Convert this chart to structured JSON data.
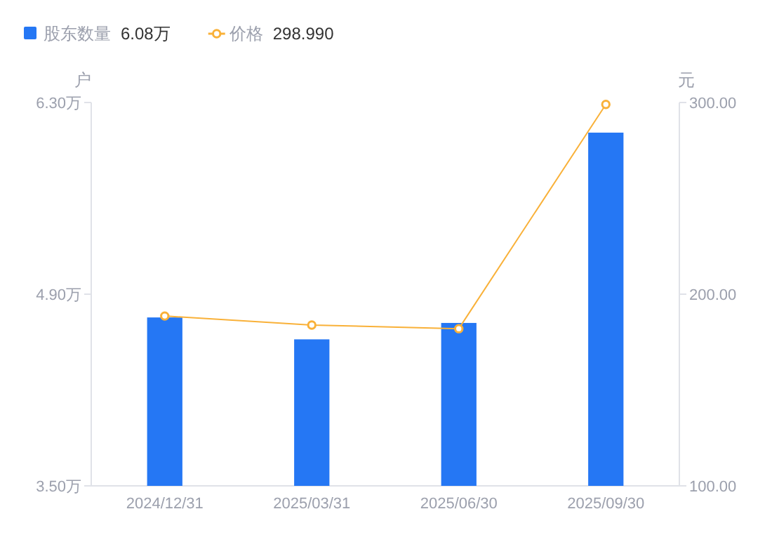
{
  "chart_data": {
    "type": "bar",
    "ylabel": "户",
    "y2label": "元",
    "categories": [
      "2024/12/31",
      "2025/03/31",
      "2025/06/30",
      "2025/09/30"
    ],
    "series": [
      {
        "name": "股东数量",
        "color": "#2577f4",
        "values": [
          4.73,
          4.57,
          4.69,
          6.08
        ]
      },
      {
        "name": "价格",
        "type": "line",
        "axis": "y2",
        "color": "#f9b139",
        "marker": "circle",
        "values": [
          188.6,
          183.9,
          182.0,
          299
        ]
      }
    ],
    "annotations": [
      "6.08万",
      "298.990"
    ],
    "ylim": [
      3.5,
      6.3
    ],
    "yticks": [
      {
        "value": 3.5,
        "label": "3.50万"
      },
      {
        "value": 4.9,
        "label": "4.90万"
      },
      {
        "value": 6.3,
        "label": "6.30万"
      }
    ],
    "y2lim": [
      100,
      300
    ],
    "y2ticks": [
      {
        "value": 100,
        "label": "100.00"
      },
      {
        "value": 200,
        "label": "200.00"
      },
      {
        "value": 300,
        "label": "300.00"
      }
    ],
    "legend": "top left",
    "grid": false
  }
}
